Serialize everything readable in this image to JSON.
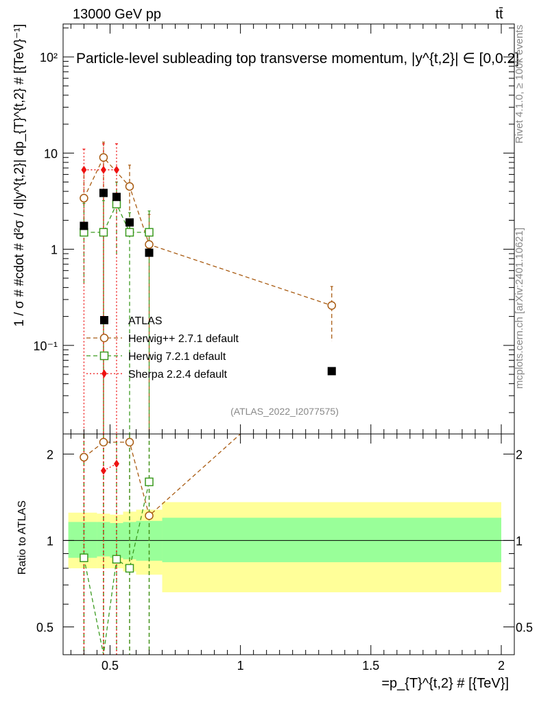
{
  "header": {
    "left": "13000 GeV pp",
    "right": "tt̄"
  },
  "side_labels": {
    "rivet": "Rivet 4.1.0, ≥ 100k events",
    "mcplots": "mcplots.cern.ch [arXiv:2401.10621]"
  },
  "analysis_id": "(ATLAS_2022_I2077575)",
  "chart_data": {
    "type": "scatter",
    "title": "Particle-level subleading top transverse momentum, |y^{t,2}| ∈ [0,0.2]",
    "ylabel_main": "1 / σ # #cdot # d²σ / d|y^{t,2}| dp_{T}^{t,2} # [{TeV}⁻¹]",
    "ylabel_ratio": "Ratio to ATLAS",
    "xlabel": "=p_{T}^{t,2} # [{TeV}]",
    "xlim": [
      0.32,
      2.05
    ],
    "ylim_main": [
      0.012,
      220
    ],
    "ylim_ratio": [
      0.4,
      2.35
    ],
    "yscale": "log",
    "main_yticks": [
      {
        "v": 0.1,
        "label": "10⁻¹"
      },
      {
        "v": 1,
        "label": "1"
      },
      {
        "v": 10,
        "label": "10"
      },
      {
        "v": 100,
        "label": "10²"
      }
    ],
    "ratio_yticks": [
      {
        "v": 0.5,
        "label": "0.5"
      },
      {
        "v": 1,
        "label": "1"
      },
      {
        "v": 2,
        "label": "2"
      }
    ],
    "xticks": [
      {
        "v": 0.5,
        "label": "0.5"
      },
      {
        "v": 1,
        "label": "1"
      },
      {
        "v": 1.5,
        "label": "1.5"
      },
      {
        "v": 2,
        "label": "2"
      }
    ],
    "series": [
      {
        "name": "ATLAS",
        "color": "#000000",
        "marker": "square-filled",
        "points": [
          {
            "x": 0.4,
            "y": 1.75
          },
          {
            "x": 0.475,
            "y": 3.85
          },
          {
            "x": 0.525,
            "y": 3.5
          },
          {
            "x": 0.575,
            "y": 1.9
          },
          {
            "x": 0.65,
            "y": 0.92
          },
          {
            "x": 1.35,
            "y": 0.054
          }
        ]
      },
      {
        "name": "Herwig++ 2.7.1 default",
        "color": "#a85a10",
        "marker": "circle-open",
        "dash": "6,4",
        "points": [
          {
            "x": 0.4,
            "y": 3.4,
            "lo": 1.5,
            "hi": 7.0
          },
          {
            "x": 0.475,
            "y": 9.0,
            "lo": 0.0,
            "hi": 13.0
          },
          {
            "x": 0.575,
            "y": 4.5,
            "lo": 1.5,
            "hi": 7.5
          },
          {
            "x": 0.65,
            "y": 1.12,
            "lo": 0.0,
            "hi": 2.3
          },
          {
            "x": 1.35,
            "y": 0.26,
            "lo": 0.11,
            "hi": 0.41
          }
        ],
        "ratio": [
          {
            "x": 0.4,
            "y": 1.95
          },
          {
            "x": 0.475,
            "y": 2.2
          },
          {
            "x": 0.575,
            "y": 2.2
          },
          {
            "x": 0.65,
            "y": 1.22
          },
          {
            "x": 1.0,
            "y": 2.35
          }
        ]
      },
      {
        "name": "Herwig 7.2.1 default",
        "color": "#3a9a1e",
        "marker": "square-open",
        "dash": "6,4",
        "points": [
          {
            "x": 0.4,
            "y": 1.5,
            "lo": 0.43,
            "hi": 3.0
          },
          {
            "x": 0.475,
            "y": 1.5,
            "lo": 0.0,
            "hi": 3.2
          },
          {
            "x": 0.525,
            "y": 2.95,
            "lo": 0.9,
            "hi": 5.0
          },
          {
            "x": 0.575,
            "y": 1.5,
            "lo": 0.0,
            "hi": 2.4
          },
          {
            "x": 0.65,
            "y": 1.5,
            "lo": 0.0,
            "hi": 2.5
          }
        ],
        "ratio": [
          {
            "x": 0.4,
            "y": 0.87
          },
          {
            "x": 0.475,
            "y": 0.38
          },
          {
            "x": 0.525,
            "y": 0.86
          },
          {
            "x": 0.575,
            "y": 0.8
          },
          {
            "x": 0.65,
            "y": 1.6
          }
        ]
      },
      {
        "name": "Sherpa 2.2.4 default",
        "color": "#ee1111",
        "marker": "diamond-filled",
        "dash": "2,3",
        "points": [
          {
            "x": 0.4,
            "y": 6.7,
            "lo": 0.0,
            "hi": 11.0
          },
          {
            "x": 0.475,
            "y": 6.7,
            "lo": 0.0,
            "hi": 12.5
          },
          {
            "x": 0.525,
            "y": 6.7,
            "lo": 0.0,
            "hi": 12.5
          }
        ],
        "ratio": [
          {
            "x": 0.475,
            "y": 1.75
          },
          {
            "x": 0.525,
            "y": 1.85
          }
        ]
      }
    ],
    "uncertainty_bands": [
      {
        "x0": 0.34,
        "x1": 0.45,
        "inner": [
          0.87,
          1.16
        ],
        "outer": [
          0.8,
          1.25
        ]
      },
      {
        "x0": 0.45,
        "x1": 0.5,
        "inner": [
          0.88,
          1.16
        ],
        "outer": [
          0.8,
          1.24
        ]
      },
      {
        "x0": 0.5,
        "x1": 0.55,
        "inner": [
          0.87,
          1.15
        ],
        "outer": [
          0.8,
          1.23
        ]
      },
      {
        "x0": 0.55,
        "x1": 0.6,
        "inner": [
          0.86,
          1.16
        ],
        "outer": [
          0.78,
          1.26
        ]
      },
      {
        "x0": 0.6,
        "x1": 0.7,
        "inner": [
          0.85,
          1.17
        ],
        "outer": [
          0.76,
          1.28
        ]
      },
      {
        "x0": 0.7,
        "x1": 2.0,
        "inner": [
          0.84,
          1.2
        ],
        "outer": [
          0.66,
          1.36
        ]
      }
    ]
  }
}
